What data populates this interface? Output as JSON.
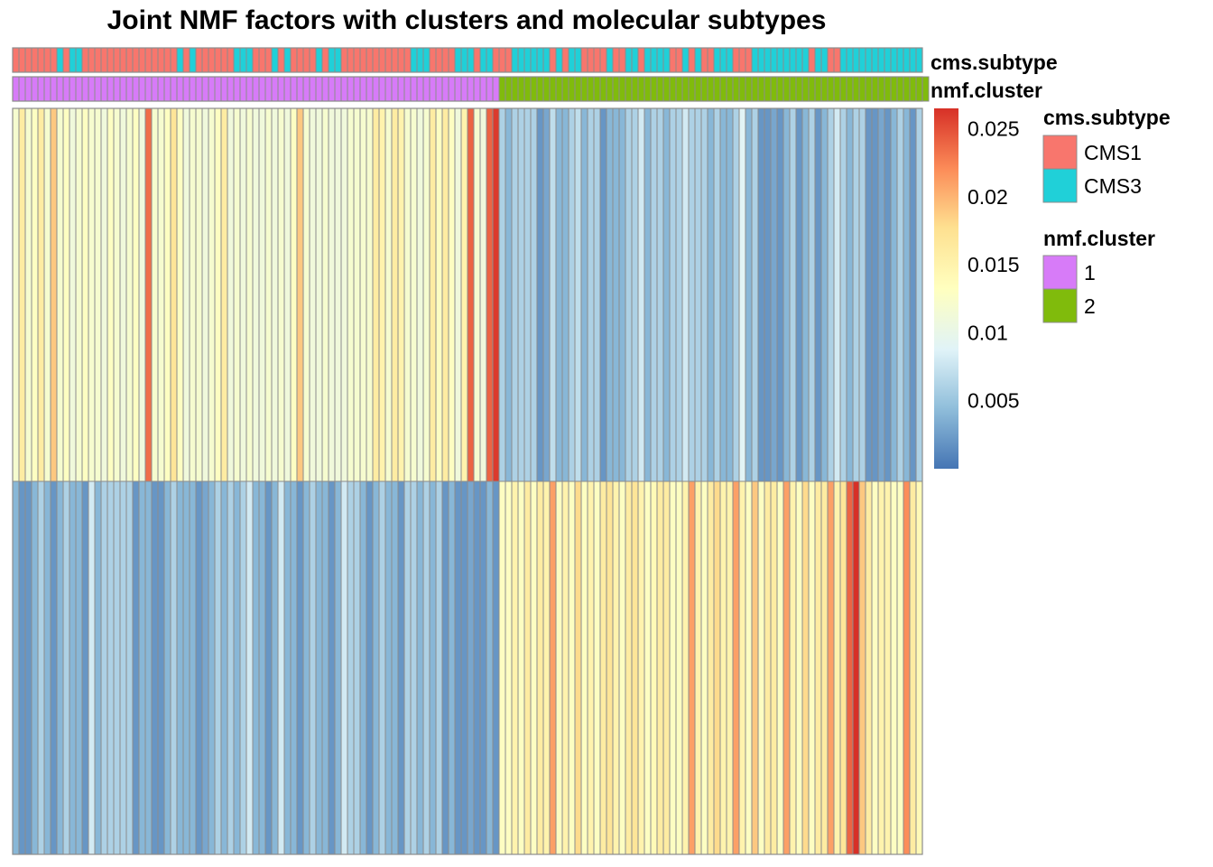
{
  "chart_data": {
    "type": "heatmap",
    "title": "Joint NMF factors with clusters and molecular subtypes",
    "n_rows": 2,
    "n_columns": 144,
    "columns_per_cluster": [
      77,
      67
    ],
    "color_scale": {
      "min": 0.0,
      "max": 0.0265,
      "ticks": [
        "0.005",
        "0.01",
        "0.015",
        "0.02",
        "0.025"
      ],
      "tick_values": [
        0.005,
        0.01,
        0.015,
        0.02,
        0.025
      ],
      "palette": [
        "#4575B4",
        "#91BFDB",
        "#E0F3F8",
        "#FFFFBF",
        "#FEE090",
        "#FC8D59",
        "#D73027"
      ]
    },
    "annotations": [
      {
        "name": "cms.subtype",
        "levels": [
          {
            "label": "CMS1",
            "color": "#F8766D"
          },
          {
            "label": "CMS3",
            "color": "#20D0D8"
          }
        ],
        "values": [
          "CMS1",
          "CMS1",
          "CMS1",
          "CMS1",
          "CMS1",
          "CMS1",
          "CMS1",
          "CMS3",
          "CMS1",
          "CMS3",
          "CMS3",
          "CMS1",
          "CMS1",
          "CMS1",
          "CMS1",
          "CMS1",
          "CMS1",
          "CMS1",
          "CMS1",
          "CMS1",
          "CMS1",
          "CMS1",
          "CMS1",
          "CMS1",
          "CMS1",
          "CMS1",
          "CMS3",
          "CMS1",
          "CMS3",
          "CMS1",
          "CMS1",
          "CMS1",
          "CMS1",
          "CMS1",
          "CMS1",
          "CMS3",
          "CMS3",
          "CMS3",
          "CMS1",
          "CMS1",
          "CMS1",
          "CMS3",
          "CMS1",
          "CMS3",
          "CMS1",
          "CMS1",
          "CMS1",
          "CMS1",
          "CMS3",
          "CMS1",
          "CMS3",
          "CMS3",
          "CMS1",
          "CMS1",
          "CMS1",
          "CMS1",
          "CMS1",
          "CMS1",
          "CMS1",
          "CMS1",
          "CMS1",
          "CMS1",
          "CMS1",
          "CMS3",
          "CMS3",
          "CMS3",
          "CMS1",
          "CMS1",
          "CMS1",
          "CMS1",
          "CMS3",
          "CMS3",
          "CMS3",
          "CMS1",
          "CMS3",
          "CMS3",
          "CMS1",
          "CMS1",
          "CMS1",
          "CMS3",
          "CMS3",
          "CMS3",
          "CMS3",
          "CMS3",
          "CMS3",
          "CMS1",
          "CMS3",
          "CMS1",
          "CMS3",
          "CMS3",
          "CMS1",
          "CMS1",
          "CMS1",
          "CMS1",
          "CMS3",
          "CMS1",
          "CMS1",
          "CMS3",
          "CMS3",
          "CMS1",
          "CMS3",
          "CMS3",
          "CMS3",
          "CMS3",
          "CMS1",
          "CMS1",
          "CMS3",
          "CMS1",
          "CMS3",
          "CMS1",
          "CMS1",
          "CMS3",
          "CMS3",
          "CMS3",
          "CMS1",
          "CMS1",
          "CMS1",
          "CMS3",
          "CMS3",
          "CMS3",
          "CMS3",
          "CMS3",
          "CMS3",
          "CMS3",
          "CMS3",
          "CMS3",
          "CMS1",
          "CMS3",
          "CMS3",
          "CMS1",
          "CMS1",
          "CMS3",
          "CMS3",
          "CMS3",
          "CMS3",
          "CMS3",
          "CMS3",
          "CMS3",
          "CMS3",
          "CMS3",
          "CMS3",
          "CMS3",
          "CMS3",
          "CMS3"
        ]
      },
      {
        "name": "nmf.cluster",
        "levels": [
          {
            "label": "1",
            "color": "#D77BF8"
          },
          {
            "label": "2",
            "color": "#80BB0C"
          }
        ],
        "values": [
          1,
          1,
          1,
          1,
          1,
          1,
          1,
          1,
          1,
          1,
          1,
          1,
          1,
          1,
          1,
          1,
          1,
          1,
          1,
          1,
          1,
          1,
          1,
          1,
          1,
          1,
          1,
          1,
          1,
          1,
          1,
          1,
          1,
          1,
          1,
          1,
          1,
          1,
          1,
          1,
          1,
          1,
          1,
          1,
          1,
          1,
          1,
          1,
          1,
          1,
          1,
          1,
          1,
          1,
          1,
          1,
          1,
          1,
          1,
          1,
          1,
          1,
          1,
          1,
          1,
          1,
          1,
          1,
          1,
          1,
          1,
          1,
          1,
          1,
          1,
          1,
          1,
          2,
          2,
          2,
          2,
          2,
          2,
          2,
          2,
          2,
          2,
          2,
          2,
          2,
          2,
          2,
          2,
          2,
          2,
          2,
          2,
          2,
          2,
          2,
          2,
          2,
          2,
          2,
          2,
          2,
          2,
          2,
          2,
          2,
          2,
          2,
          2,
          2,
          2,
          2,
          2,
          2,
          2,
          2,
          2,
          2,
          2,
          2,
          2,
          2,
          2,
          2,
          2,
          2,
          2,
          2,
          2,
          2,
          2,
          2,
          2,
          2,
          2,
          2,
          2,
          2,
          2,
          2,
          2
        ]
      }
    ],
    "rows": [
      {
        "values": [
          0.012,
          0.016,
          0.012,
          0.013,
          0.016,
          0.012,
          0.019,
          0.012,
          0.013,
          0.011,
          0.012,
          0.013,
          0.012,
          0.012,
          0.011,
          0.013,
          0.012,
          0.011,
          0.012,
          0.013,
          0.011,
          0.0235,
          0.012,
          0.012,
          0.013,
          0.017,
          0.013,
          0.011,
          0.012,
          0.012,
          0.011,
          0.012,
          0.013,
          0.016,
          0.011,
          0.012,
          0.011,
          0.012,
          0.011,
          0.011,
          0.012,
          0.011,
          0.012,
          0.011,
          0.013,
          0.019,
          0.012,
          0.011,
          0.011,
          0.012,
          0.011,
          0.011,
          0.011,
          0.012,
          0.012,
          0.012,
          0.012,
          0.016,
          0.015,
          0.012,
          0.016,
          0.015,
          0.012,
          0.012,
          0.011,
          0.012,
          0.016,
          0.013,
          0.016,
          0.013,
          0.011,
          0.015,
          0.024,
          0.012,
          0.011,
          0.024,
          0.026,
          0.006,
          0.004,
          0.006,
          0.006,
          0.006,
          0.006,
          0.002,
          0.003,
          0.007,
          0.004,
          0.004,
          0.006,
          0.007,
          0.004,
          0.006,
          0.006,
          0.002,
          0.004,
          0.004,
          0.004,
          0.006,
          0.006,
          0.008,
          0.004,
          0.006,
          0.006,
          0.004,
          0.006,
          0.006,
          0.008,
          0.006,
          0.006,
          0.006,
          0.004,
          0.006,
          0.004,
          0.004,
          0.006,
          0.009,
          0.004,
          0.006,
          0.002,
          0.002,
          0.003,
          0.002,
          0.004,
          0.006,
          0.002,
          0.004,
          0.006,
          0.002,
          0.004,
          0.006,
          0.008,
          0.006,
          0.004,
          0.006,
          0.006,
          0.002,
          0.002,
          0.003,
          0.002,
          0.004,
          0.006,
          0.004,
          0.002,
          0.006
        ]
      },
      {
        "values": [
          0.004,
          0.002,
          0.002,
          0.004,
          0.006,
          0.004,
          0.002,
          0.004,
          0.006,
          0.004,
          0.004,
          0.002,
          0.008,
          0.004,
          0.006,
          0.006,
          0.006,
          0.006,
          0.006,
          0.002,
          0.004,
          0.004,
          0.002,
          0.002,
          0.004,
          0.006,
          0.004,
          0.004,
          0.004,
          0.002,
          0.003,
          0.004,
          0.006,
          0.004,
          0.006,
          0.004,
          0.006,
          0.008,
          0.004,
          0.004,
          0.002,
          0.004,
          0.008,
          0.004,
          0.004,
          0.002,
          0.004,
          0.006,
          0.004,
          0.004,
          0.002,
          0.004,
          0.008,
          0.006,
          0.006,
          0.004,
          0.002,
          0.004,
          0.006,
          0.004,
          0.004,
          0.002,
          0.006,
          0.006,
          0.004,
          0.006,
          0.004,
          0.006,
          0.002,
          0.004,
          0.002,
          0.002,
          0.003,
          0.002,
          0.002,
          0.004,
          0.002,
          0.013,
          0.013,
          0.015,
          0.013,
          0.016,
          0.013,
          0.016,
          0.015,
          0.021,
          0.013,
          0.015,
          0.013,
          0.018,
          0.013,
          0.015,
          0.013,
          0.016,
          0.017,
          0.015,
          0.013,
          0.016,
          0.017,
          0.015,
          0.013,
          0.014,
          0.016,
          0.016,
          0.013,
          0.013,
          0.015,
          0.021,
          0.015,
          0.013,
          0.016,
          0.018,
          0.015,
          0.015,
          0.021,
          0.015,
          0.013,
          0.019,
          0.013,
          0.016,
          0.016,
          0.013,
          0.021,
          0.015,
          0.013,
          0.018,
          0.013,
          0.016,
          0.016,
          0.021,
          0.015,
          0.017,
          0.024,
          0.027,
          0.019,
          0.016,
          0.013,
          0.015,
          0.015,
          0.013,
          0.013,
          0.022,
          0.016,
          0.014
        ]
      }
    ],
    "legend_placement": "right"
  }
}
